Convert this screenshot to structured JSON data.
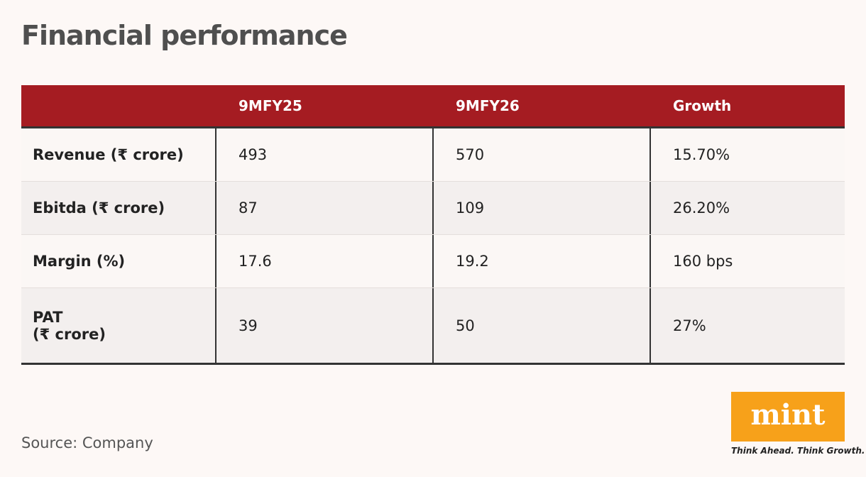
{
  "header": {
    "title": "Financial performance"
  },
  "table": {
    "columns": [
      "9MFY25",
      "9MFY26",
      "Growth"
    ],
    "rows": [
      {
        "label": [
          "Revenue (₹ crore)"
        ],
        "cells": [
          "493",
          "570",
          "15.70%"
        ]
      },
      {
        "label": [
          "Ebitda (₹ crore)"
        ],
        "cells": [
          "87",
          "109",
          "26.20%"
        ]
      },
      {
        "label": [
          "Margin (%)"
        ],
        "cells": [
          "17.6",
          "19.2",
          "160 bps"
        ]
      },
      {
        "label": [
          "PAT",
          "(₹ crore)"
        ],
        "cells": [
          "39",
          "50",
          "27%"
        ]
      }
    ]
  },
  "footer": {
    "source": "Source: Company",
    "logo": "mint",
    "tagline": "Think Ahead. Think Growth."
  }
}
